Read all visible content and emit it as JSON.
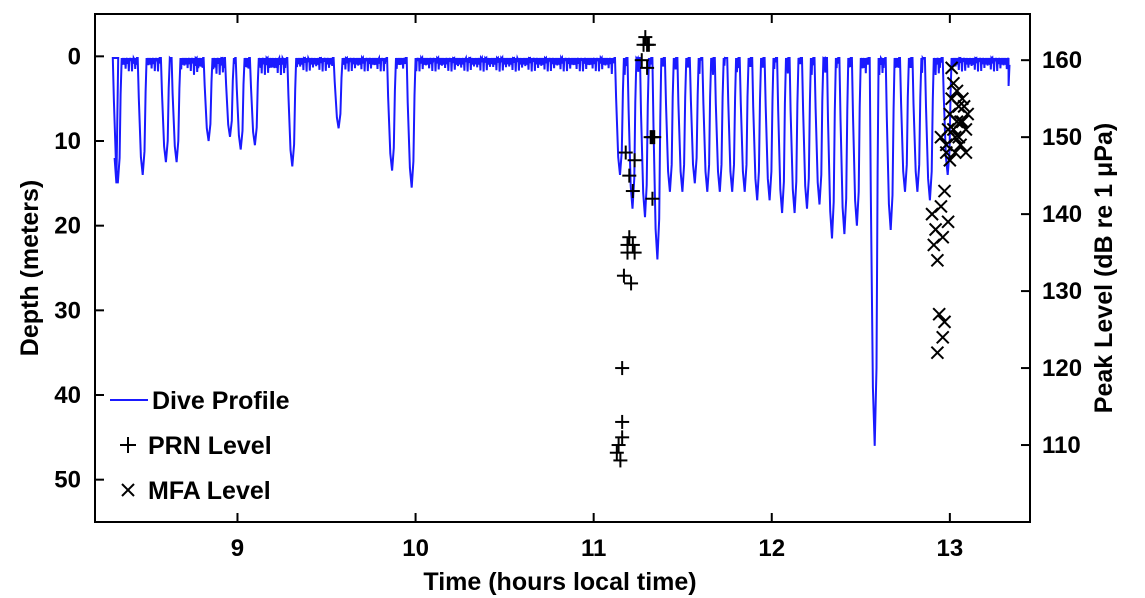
{
  "chart_data": {
    "type": "line",
    "xlabel": "Time (hours local time)",
    "ylabel_left": "Depth (meters)",
    "ylabel_right": "Peak Level (dB re 1 μPa)",
    "xlim": [
      8.2,
      13.45
    ],
    "ylim_left": [
      55,
      -5
    ],
    "ylim_right": [
      100,
      166
    ],
    "x_ticks": [
      9,
      10,
      11,
      12,
      13
    ],
    "y_ticks_left": [
      0,
      10,
      20,
      30,
      40,
      50
    ],
    "y_ticks_right": [
      110,
      120,
      130,
      140,
      150,
      160
    ],
    "grid": false,
    "legend_position": "bottom-left",
    "colors": {
      "dive_profile": "#1a1aff",
      "markers": "#000000"
    },
    "legend": [
      {
        "label": "Dive Profile",
        "marker": "line"
      },
      {
        "label": "PRN Level",
        "marker": "+"
      },
      {
        "label": "MFA Level",
        "marker": "x"
      }
    ],
    "dive_profile": {
      "name": "Dive Profile",
      "axis": "left",
      "dives": [
        [
          8.33,
          15
        ],
        [
          8.47,
          14
        ],
        [
          8.6,
          12.5
        ],
        [
          8.66,
          12.5
        ],
        [
          8.84,
          10
        ],
        [
          8.96,
          9.5
        ],
        [
          9.02,
          11
        ],
        [
          9.1,
          10.5
        ],
        [
          9.31,
          13
        ],
        [
          9.57,
          8.5
        ],
        [
          9.87,
          13.5
        ],
        [
          9.98,
          15.5
        ],
        [
          11.15,
          14
        ],
        [
          11.22,
          18
        ],
        [
          11.29,
          19
        ],
        [
          11.36,
          24
        ],
        [
          11.43,
          16
        ],
        [
          11.5,
          16
        ],
        [
          11.57,
          15
        ],
        [
          11.64,
          16
        ],
        [
          11.71,
          16
        ],
        [
          11.78,
          16
        ],
        [
          11.85,
          16
        ],
        [
          11.92,
          17
        ],
        [
          11.99,
          17
        ],
        [
          12.06,
          18.5
        ],
        [
          12.13,
          18.5
        ],
        [
          12.2,
          18
        ],
        [
          12.27,
          17.5
        ],
        [
          12.34,
          21.5
        ],
        [
          12.41,
          21
        ],
        [
          12.48,
          20
        ],
        [
          12.58,
          46
        ],
        [
          12.67,
          20.5
        ],
        [
          12.75,
          16
        ],
        [
          12.82,
          16
        ],
        [
          12.89,
          17
        ],
        [
          12.99,
          14
        ]
      ]
    },
    "prn_level": {
      "name": "PRN Level",
      "axis": "right",
      "points": [
        [
          11.13,
          109
        ],
        [
          11.14,
          110
        ],
        [
          11.15,
          108
        ],
        [
          11.16,
          111
        ],
        [
          11.16,
          113
        ],
        [
          11.16,
          120
        ],
        [
          11.17,
          132
        ],
        [
          11.18,
          148
        ],
        [
          11.19,
          136
        ],
        [
          11.19,
          135
        ],
        [
          11.2,
          137
        ],
        [
          11.2,
          145
        ],
        [
          11.21,
          131
        ],
        [
          11.22,
          143
        ],
        [
          11.22,
          136
        ],
        [
          11.23,
          135
        ],
        [
          11.23,
          147
        ],
        [
          11.27,
          160
        ],
        [
          11.28,
          162
        ],
        [
          11.29,
          163
        ],
        [
          11.3,
          159
        ],
        [
          11.3,
          162
        ],
        [
          11.31,
          162
        ],
        [
          11.32,
          150
        ],
        [
          11.33,
          150
        ],
        [
          11.33,
          142
        ],
        [
          11.34,
          150
        ]
      ]
    },
    "mfa_level": {
      "name": "MFA Level",
      "axis": "right",
      "points": [
        [
          12.9,
          140
        ],
        [
          12.91,
          136
        ],
        [
          12.92,
          138
        ],
        [
          12.93,
          134
        ],
        [
          12.93,
          122
        ],
        [
          12.94,
          127
        ],
        [
          12.95,
          141
        ],
        [
          12.95,
          150
        ],
        [
          12.96,
          124
        ],
        [
          12.96,
          137
        ],
        [
          12.97,
          126
        ],
        [
          12.97,
          143
        ],
        [
          12.98,
          148
        ],
        [
          12.98,
          149
        ],
        [
          12.99,
          139
        ],
        [
          12.99,
          151
        ],
        [
          13,
          153
        ],
        [
          13,
          147
        ],
        [
          13.01,
          155
        ],
        [
          13.01,
          159
        ],
        [
          13.02,
          157
        ],
        [
          13.02,
          151
        ],
        [
          13.03,
          150
        ],
        [
          13.03,
          148
        ],
        [
          13.04,
          152
        ],
        [
          13.04,
          156
        ],
        [
          13.05,
          150
        ],
        [
          13.05,
          154
        ],
        [
          13.06,
          152
        ],
        [
          13.06,
          149
        ],
        [
          13.07,
          155
        ],
        [
          13.07,
          152
        ],
        [
          13.08,
          154
        ],
        [
          13.09,
          148
        ],
        [
          13.09,
          151
        ],
        [
          13.1,
          153
        ]
      ]
    }
  }
}
